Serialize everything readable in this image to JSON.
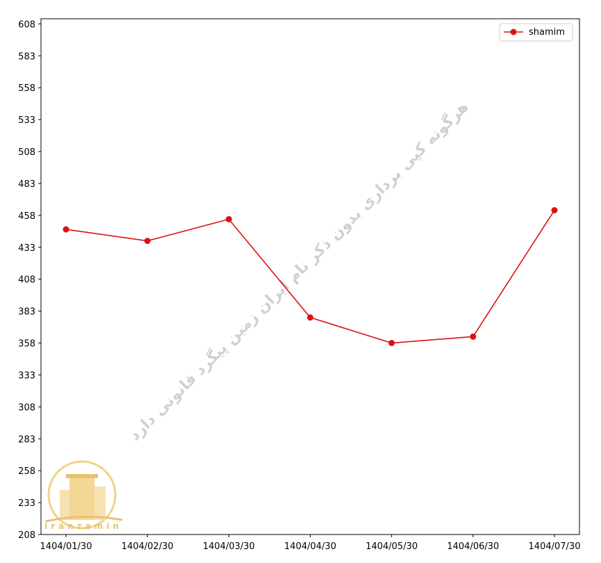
{
  "chart_data": {
    "type": "line",
    "categories": [
      "1404/01/30",
      "1404/02/30",
      "1404/03/30",
      "1404/04/30",
      "1404/05/30",
      "1404/06/30",
      "1404/07/30"
    ],
    "series": [
      {
        "name": "shamim",
        "color": "#dd1111",
        "values": [
          447,
          438,
          455,
          378,
          358,
          363,
          462
        ]
      }
    ],
    "ylim": [
      208,
      612
    ],
    "yticks": [
      208,
      233,
      258,
      283,
      308,
      333,
      358,
      383,
      408,
      433,
      458,
      483,
      508,
      533,
      558,
      583,
      608
    ],
    "legend": "upper right",
    "watermark": "هرگونه کپی برداری بدون ذکر نام ایران زمین پیگرد قانونی دارد",
    "logo_text": "iranzamin"
  }
}
